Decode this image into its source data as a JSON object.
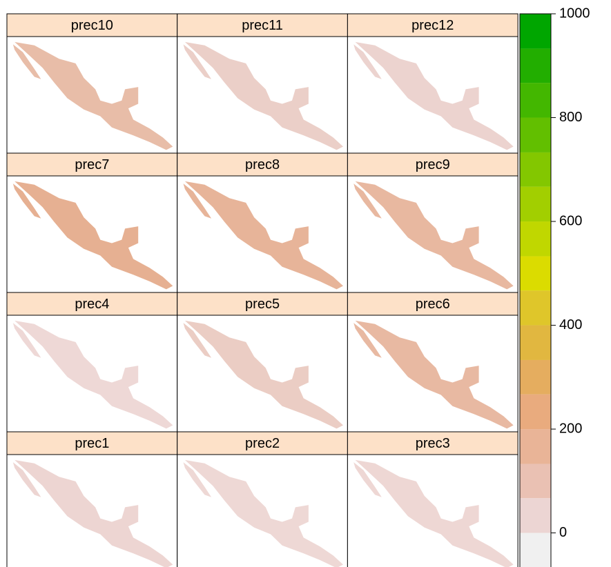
{
  "panels": [
    {
      "title": "prec10",
      "color": "#e8bda8"
    },
    {
      "title": "prec11",
      "color": "#ebcfc8"
    },
    {
      "title": "prec12",
      "color": "#ecd3cf"
    },
    {
      "title": "prec7",
      "color": "#e6b092"
    },
    {
      "title": "prec8",
      "color": "#e7b499"
    },
    {
      "title": "prec9",
      "color": "#e8b8a0"
    },
    {
      "title": "prec4",
      "color": "#eed8d6"
    },
    {
      "title": "prec5",
      "color": "#ebcdc4"
    },
    {
      "title": "prec6",
      "color": "#e8b9a2"
    },
    {
      "title": "prec1",
      "color": "#edd5d2"
    },
    {
      "title": "prec2",
      "color": "#eed8d5"
    },
    {
      "title": "prec3",
      "color": "#eed7d4"
    }
  ],
  "legend": {
    "lim": [
      -67,
      1000
    ],
    "ticks": [
      0,
      200,
      400,
      600,
      800,
      1000
    ],
    "breaks": [
      -67,
      0,
      67,
      133,
      200,
      267,
      333,
      400,
      467,
      533,
      600,
      667,
      733,
      800,
      867,
      933,
      1000
    ],
    "colors": [
      "#f0f0f0",
      "#ecd5d3",
      "#eac1b3",
      "#e9b497",
      "#e9ab7e",
      "#e5ad5f",
      "#e1b740",
      "#dfc62a",
      "#dbdc00",
      "#c0d700",
      "#a2cf00",
      "#83c700",
      "#62bf00",
      "#43b700",
      "#22ae00",
      "#00a600"
    ]
  }
}
